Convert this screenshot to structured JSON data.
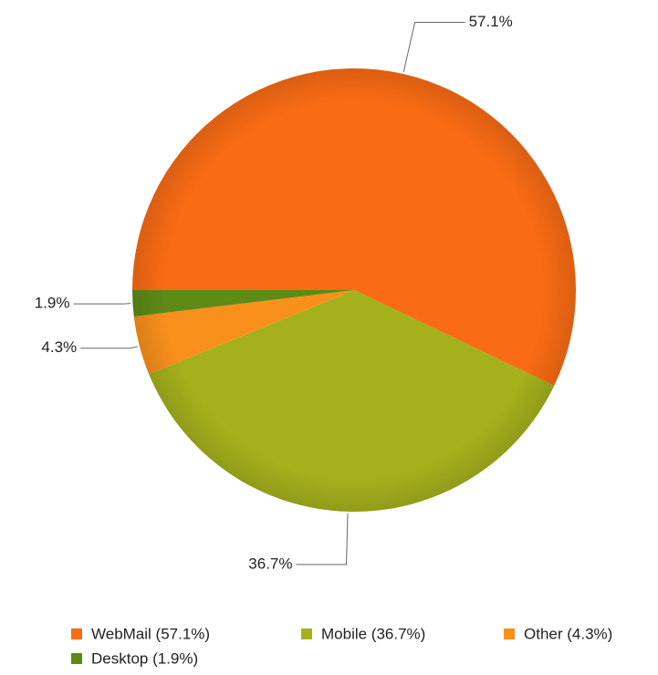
{
  "chart_data": {
    "type": "pie",
    "categories": [
      "WebMail (57.1%)",
      "Mobile (36.7%)",
      "Other (4.3%)",
      "Desktop (1.9%)"
    ],
    "values": [
      57.1,
      36.7,
      4.3,
      1.9
    ],
    "value_labels": [
      "57.1%",
      "36.7%",
      "4.3%",
      "1.9%"
    ],
    "colors": [
      "#f96b14",
      "#a4b11c",
      "#fa901c",
      "#5e8a16"
    ]
  }
}
